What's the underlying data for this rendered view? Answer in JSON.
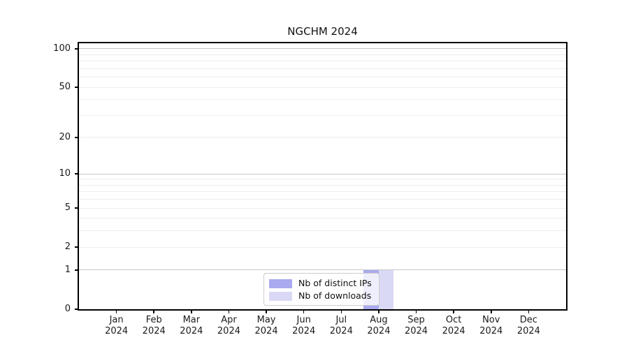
{
  "title": "NGCHM 2024",
  "legend": {
    "items": [
      {
        "label": "Nb of distinct IPs",
        "color": "#aaaaf0"
      },
      {
        "label": "Nb of downloads",
        "color": "#d9d9f5"
      }
    ]
  },
  "colors": {
    "grid_major": "#c6c6c6",
    "grid_minor": "#ededed",
    "axis": "#000000",
    "background": "#ffffff"
  },
  "chart_data": {
    "type": "bar",
    "title": "NGCHM 2024",
    "xlabel": "",
    "ylabel": "",
    "categories": [
      {
        "month": "Jan",
        "year": "2024"
      },
      {
        "month": "Feb",
        "year": "2024"
      },
      {
        "month": "Mar",
        "year": "2024"
      },
      {
        "month": "Apr",
        "year": "2024"
      },
      {
        "month": "May",
        "year": "2024"
      },
      {
        "month": "Jun",
        "year": "2024"
      },
      {
        "month": "Jul",
        "year": "2024"
      },
      {
        "month": "Aug",
        "year": "2024"
      },
      {
        "month": "Sep",
        "year": "2024"
      },
      {
        "month": "Oct",
        "year": "2024"
      },
      {
        "month": "Nov",
        "year": "2024"
      },
      {
        "month": "Dec",
        "year": "2024"
      }
    ],
    "series": [
      {
        "name": "Nb of distinct IPs",
        "color": "#aaaaf0",
        "values": [
          0,
          0,
          0,
          0,
          0,
          0,
          0,
          1,
          0,
          0,
          0,
          0
        ]
      },
      {
        "name": "Nb of downloads",
        "color": "#d9d9f5",
        "values": [
          0,
          0,
          0,
          0,
          0,
          0,
          0,
          1,
          0,
          0,
          0,
          0
        ]
      }
    ],
    "y_axis": {
      "scale": "log1p",
      "ticks": [
        100,
        50,
        20,
        10,
        5,
        2,
        1,
        0
      ],
      "major_grid": [
        100,
        10,
        1
      ],
      "minor_grid": [
        90,
        80,
        70,
        60,
        50,
        40,
        30,
        20,
        9,
        8,
        7,
        6,
        5,
        4,
        3,
        2
      ],
      "ylim": [
        0,
        110.5
      ]
    },
    "grid": true,
    "legend_position": "lower center"
  }
}
